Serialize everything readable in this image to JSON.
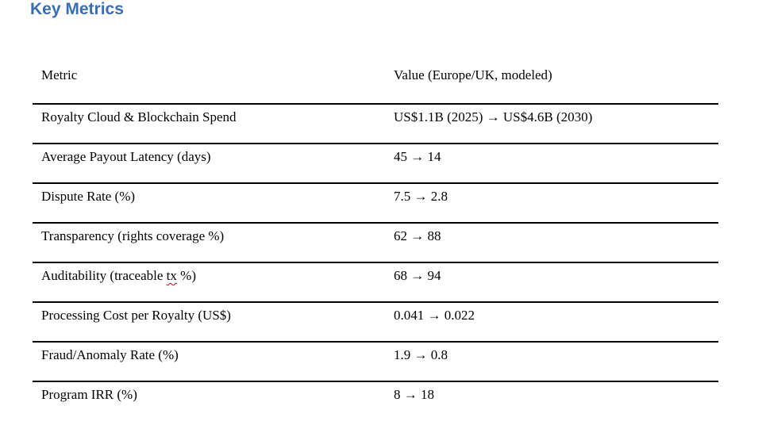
{
  "document": {
    "heading": "Key Metrics",
    "accent_color": "#3B6CB4",
    "spellcheck_color": "#C00000"
  },
  "spellcheck": {
    "word": "tx",
    "row_index": 4
  },
  "table": {
    "columns": [
      "Metric",
      "Value (Europe/UK, modeled)"
    ],
    "rows": [
      [
        "Royalty Cloud & Blockchain Spend",
        "US$1.1B (2025) → US$4.6B (2030)"
      ],
      [
        "Average Payout Latency (days)",
        "45 → 14"
      ],
      [
        "Dispute Rate (%)",
        "7.5 → 2.8"
      ],
      [
        "Transparency (rights coverage %)",
        "62 → 88"
      ],
      [
        "Auditability (traceable tx %)",
        "68 → 94"
      ],
      [
        "Processing Cost per Royalty (US$)",
        "0.041 → 0.022"
      ],
      [
        "Fraud/Anomaly Rate (%)",
        "1.9 → 0.8"
      ],
      [
        "Program IRR (%)",
        "8 → 18"
      ]
    ]
  }
}
